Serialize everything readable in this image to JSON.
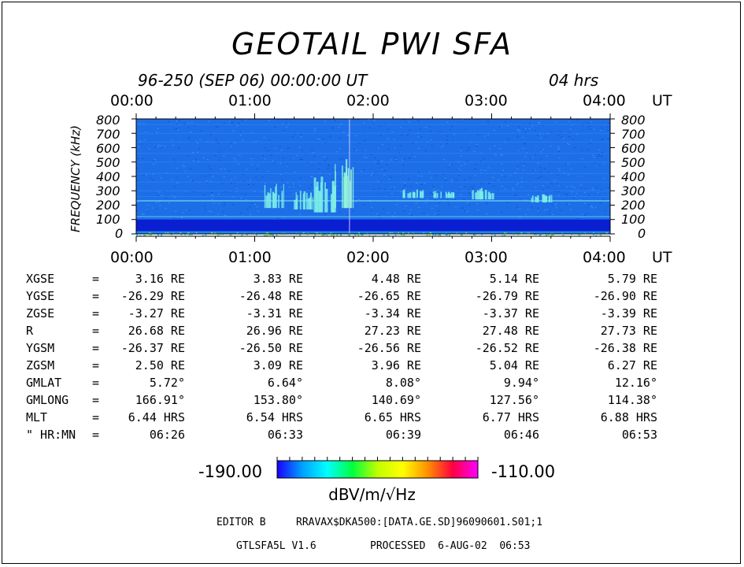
{
  "title": "GEOTAIL PWI SFA",
  "date_line": "96-250 (SEP 06) 00:00:00 UT",
  "duration": "04 hrs",
  "time_ticks": [
    "00:00",
    "01:00",
    "02:00",
    "03:00",
    "04:00"
  ],
  "time_unit": "UT",
  "freq_ticks": [
    "800",
    "700",
    "600",
    "500",
    "400",
    "300",
    "200",
    "100",
    "0"
  ],
  "freq_axis_label": "FREQUENCY (kHz)",
  "chart_data": {
    "type": "heatmap",
    "title": "GEOTAIL PWI SFA",
    "xlabel": "UT",
    "ylabel": "FREQUENCY (kHz)",
    "x_ticks": [
      "00:00",
      "01:00",
      "02:00",
      "03:00",
      "04:00"
    ],
    "xlim": [
      "00:00",
      "04:00"
    ],
    "ylim": [
      0,
      800
    ],
    "y_ticks": [
      0,
      100,
      200,
      300,
      400,
      500,
      600,
      700,
      800
    ],
    "colorbar": {
      "min": -190.0,
      "max": -110.0,
      "unit": "dBV/m/√Hz",
      "colors": [
        "#1a00ff",
        "#00a0ff",
        "#00ffff",
        "#00ff40",
        "#c0ff00",
        "#ffff00",
        "#ff9000",
        "#ff0040",
        "#ff00ff"
      ]
    },
    "background_level_color": "#1e6ee8",
    "low_band_color": "#0a1ed2",
    "bursts": [
      {
        "time": "01:10",
        "freq_range": [
          180,
          350
        ],
        "color": "#7df0e6"
      },
      {
        "time": "01:25",
        "freq_range": [
          170,
          300
        ],
        "color": "#7df0e6"
      },
      {
        "time": "01:35",
        "freq_range": [
          150,
          400
        ],
        "color": "#7df0e6"
      },
      {
        "time": "01:45",
        "freq_range": [
          180,
          520
        ],
        "color": "#8ff5d8"
      },
      {
        "time": "02:20",
        "freq_range": [
          250,
          310
        ],
        "color": "#7df0e6"
      },
      {
        "time": "02:35",
        "freq_range": [
          250,
          300
        ],
        "color": "#7df0e6"
      },
      {
        "time": "02:55",
        "freq_range": [
          240,
          320
        ],
        "color": "#7df0e6"
      },
      {
        "time": "03:25",
        "freq_range": [
          220,
          280
        ],
        "color": "#7df0e6"
      }
    ]
  },
  "orbit": {
    "rows": [
      {
        "label": "XGSE",
        "eq": "=",
        "values": [
          "3.16 RE",
          "3.83 RE",
          "4.48 RE",
          "5.14 RE",
          "5.79 RE"
        ]
      },
      {
        "label": "YGSE",
        "eq": "=",
        "values": [
          "-26.29 RE",
          "-26.48 RE",
          "-26.65 RE",
          "-26.79 RE",
          "-26.90 RE"
        ]
      },
      {
        "label": "ZGSE",
        "eq": "=",
        "values": [
          "-3.27 RE",
          "-3.31 RE",
          "-3.34 RE",
          "-3.37 RE",
          "-3.39 RE"
        ]
      },
      {
        "label": "R",
        "eq": "=",
        "values": [
          "26.68 RE",
          "26.96 RE",
          "27.23 RE",
          "27.48 RE",
          "27.73 RE"
        ]
      },
      {
        "label": "YGSM",
        "eq": "=",
        "values": [
          "-26.37 RE",
          "-26.50 RE",
          "-26.56 RE",
          "-26.52 RE",
          "-26.38 RE"
        ]
      },
      {
        "label": "ZGSM",
        "eq": "=",
        "values": [
          "2.50 RE",
          "3.09 RE",
          "3.96 RE",
          "5.04 RE",
          "6.27 RE"
        ]
      },
      {
        "label": "GMLAT",
        "eq": "=",
        "values": [
          "5.72°",
          "6.64°",
          "8.08°",
          "9.94°",
          "12.16°"
        ]
      },
      {
        "label": "GMLONG",
        "eq": "=",
        "values": [
          "166.91°",
          "153.80°",
          "140.69°",
          "127.56°",
          "114.38°"
        ]
      },
      {
        "label": "MLT",
        "eq": "=",
        "values": [
          "6.44 HRS",
          "6.54 HRS",
          "6.65 HRS",
          "6.77 HRS",
          "6.88 HRS"
        ]
      },
      {
        "label": "\" HR:MN",
        "eq": "=",
        "values": [
          "06:26",
          "06:33",
          "06:39",
          "06:46",
          "06:53"
        ]
      }
    ]
  },
  "colorbar": {
    "min_label": "-190.00",
    "max_label": "-110.00",
    "unit": "dBV/m/√Hz"
  },
  "footer": {
    "editor": "EDITOR B",
    "path": "RRAVAX$DKA500:[DATA.GE.SD]96090601.S01;1",
    "version": "GTLSFA5L V1.6",
    "processed": "PROCESSED  6-AUG-02  06:53"
  }
}
